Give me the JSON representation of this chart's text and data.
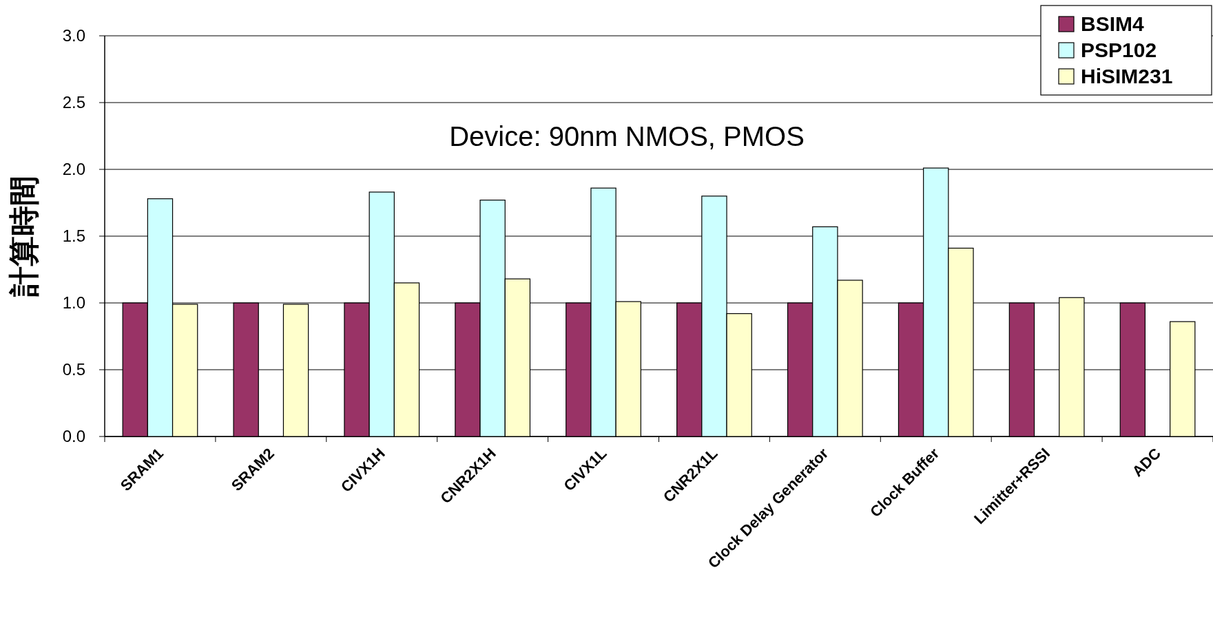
{
  "chart_data": {
    "type": "bar",
    "ylabel": "計算時間",
    "annotations": [
      "Device: 90nm NMOS, PMOS"
    ],
    "categories": [
      "SRAM1",
      "SRAM2",
      "CIVX1H",
      "CNR2X1H",
      "CIVX1L",
      "CNR2X1L",
      "Clock Delay Generator",
      "Clock Buffer",
      "Limitter+RSSI",
      "ADC"
    ],
    "series": [
      {
        "name": "BSIM4",
        "color": "#993366",
        "values": [
          1.0,
          1.0,
          1.0,
          1.0,
          1.0,
          1.0,
          1.0,
          1.0,
          1.0,
          1.0
        ]
      },
      {
        "name": "PSP102",
        "color": "#ccffff",
        "values": [
          1.78,
          null,
          1.83,
          1.77,
          1.86,
          1.8,
          1.57,
          2.01,
          null,
          null
        ]
      },
      {
        "name": "HiSIM231",
        "color": "#ffffcc",
        "values": [
          0.99,
          0.99,
          1.15,
          1.18,
          1.01,
          0.92,
          1.17,
          1.41,
          1.04,
          0.86
        ]
      }
    ],
    "ylim": [
      0,
      3
    ],
    "yticks": [
      {
        "value": 0,
        "label": "0.0"
      },
      {
        "value": 0.5,
        "label": "0.5"
      },
      {
        "value": 1,
        "label": "1.0"
      },
      {
        "value": 1.5,
        "label": "1.5"
      },
      {
        "value": 2,
        "label": "2.0"
      },
      {
        "value": 2.5,
        "label": "2.5"
      },
      {
        "value": 3,
        "label": "3.0"
      }
    ],
    "grid": "y",
    "legend": "top right"
  }
}
